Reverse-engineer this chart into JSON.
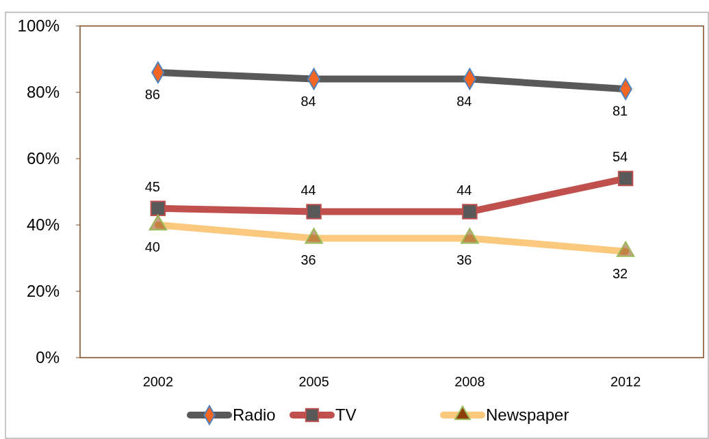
{
  "chart_data": {
    "type": "line",
    "categories": [
      "2002",
      "2005",
      "2008",
      "2012"
    ],
    "series": [
      {
        "name": "Radio",
        "color": "#595959",
        "values": [
          86,
          84,
          84,
          81
        ],
        "marker": "diamond"
      },
      {
        "name": "TV",
        "color": "#c0504d",
        "values": [
          45,
          44,
          44,
          54
        ],
        "marker": "square"
      },
      {
        "name": "Newspaper",
        "color": "#fac97d",
        "values": [
          40,
          36,
          36,
          32
        ],
        "marker": "triangle"
      }
    ],
    "ylim": [
      0,
      100
    ],
    "yticks": [
      {
        "value": 0,
        "label": "0%"
      },
      {
        "value": 20,
        "label": "20%"
      },
      {
        "value": 40,
        "label": "40%"
      },
      {
        "value": 60,
        "label": "60%"
      },
      {
        "value": 80,
        "label": "80%"
      },
      {
        "value": 100,
        "label": "100%"
      }
    ],
    "data_labels": true,
    "grid": false,
    "legend": "bottom"
  }
}
